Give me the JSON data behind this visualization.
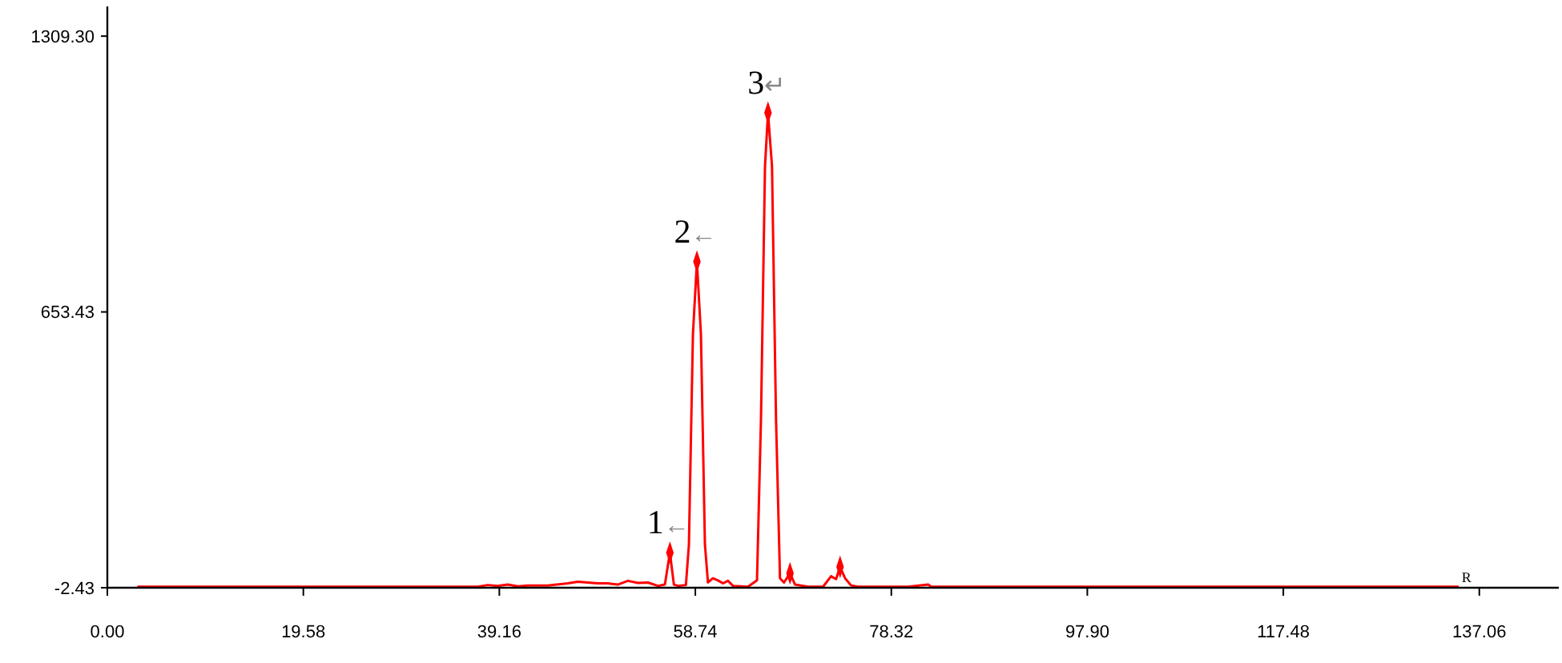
{
  "chart_data": {
    "type": "line",
    "xlim": [
      0,
      145
    ],
    "ylim": [
      -2.43,
      1380
    ],
    "xticks": [
      {
        "value": 0,
        "label": "0.00"
      },
      {
        "value": 19.58,
        "label": "19.58"
      },
      {
        "value": 39.16,
        "label": "39.16"
      },
      {
        "value": 58.74,
        "label": "58.74"
      },
      {
        "value": 78.32,
        "label": "78.32"
      },
      {
        "value": 97.9,
        "label": "97.90"
      },
      {
        "value": 117.48,
        "label": "117.48"
      },
      {
        "value": 137.06,
        "label": "137.06"
      }
    ],
    "yticks": [
      {
        "value": -2.43,
        "label": "-2.43"
      },
      {
        "value": 653.43,
        "label": "653.43"
      },
      {
        "value": 1309.3,
        "label": "1309.30"
      }
    ],
    "grid": false,
    "series": [
      {
        "color": "#ff0000",
        "marker": "none",
        "x": [
          3,
          8,
          15,
          20,
          30,
          37,
          38,
          39,
          40,
          41,
          42,
          44,
          46,
          47,
          48,
          49,
          50,
          51,
          52,
          53,
          54,
          55,
          55.7,
          56.2,
          56.6,
          57,
          57.8,
          58.1,
          58.5,
          58.9,
          59.3,
          59.7,
          60,
          60.5,
          61,
          61.5,
          62,
          62.5,
          64,
          64.9,
          65.3,
          65.7,
          66,
          66.4,
          66.8,
          67.2,
          67.6,
          68.2,
          68.7,
          70,
          71.5,
          72.3,
          72.8,
          73.2,
          73.7,
          74.3,
          75,
          80,
          82,
          82.3,
          90,
          100,
          120,
          135
        ],
        "values": [
          0,
          0,
          0,
          0,
          0,
          0,
          4,
          2,
          5,
          1,
          3,
          3,
          8,
          12,
          10,
          8,
          8,
          5,
          14,
          9,
          10,
          2,
          5,
          81,
          5,
          2,
          4,
          100,
          600,
          773,
          600,
          100,
          10,
          20,
          15,
          8,
          14,
          2,
          0,
          15,
          400,
          1000,
          1127,
          1000,
          400,
          20,
          10,
          32,
          5,
          0,
          0,
          25,
          18,
          47,
          20,
          3,
          0,
          0,
          5,
          0,
          0,
          0,
          0,
          0
        ]
      },
      {
        "type": "scatter",
        "color": "#ff0000",
        "marker": "diamond",
        "x": [
          56.2,
          58.9,
          66,
          68.2,
          73.2
        ],
        "values": [
          81,
          773,
          1127,
          32,
          47
        ]
      }
    ],
    "annotations": [
      {
        "text": "1←",
        "x": 56.2,
        "y": 81
      },
      {
        "text": "2←",
        "x": 58.9,
        "y": 773
      },
      {
        "text": "3↵",
        "x": 66,
        "y": 1127
      },
      {
        "text": "R",
        "x": 135.3,
        "y": 0
      }
    ]
  }
}
